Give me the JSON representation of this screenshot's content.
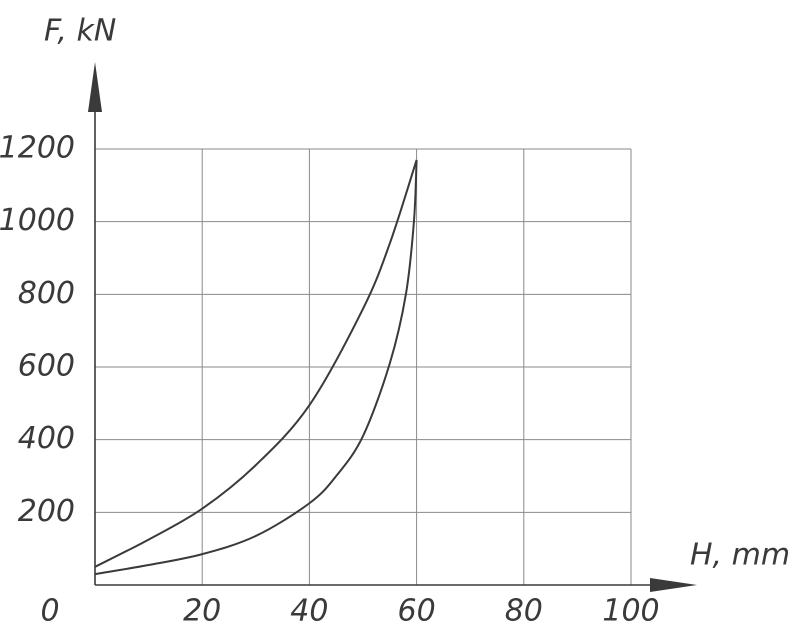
{
  "chart_data": {
    "type": "line",
    "y_label": "F, kN",
    "x_label": "H, mm",
    "xlim": [
      0,
      100
    ],
    "ylim": [
      0,
      1200
    ],
    "xticks": [
      0,
      20,
      40,
      60,
      80,
      100
    ],
    "yticks": [
      200,
      400,
      600,
      800,
      1000,
      1200
    ],
    "grid": true,
    "series": [
      {
        "color": "#3a3a3a",
        "x": [
          0,
          10,
          20,
          30,
          40,
          50,
          55,
          60
        ],
        "values": [
          50,
          125,
          210,
          330,
          495,
          760,
          940,
          1170
        ]
      },
      {
        "color": "#3a3a3a",
        "x": [
          0,
          10,
          20,
          30,
          40,
          45,
          50,
          55,
          58,
          59.5,
          60
        ],
        "values": [
          30,
          55,
          85,
          135,
          225,
          300,
          410,
          610,
          800,
          1000,
          1170
        ]
      }
    ]
  }
}
